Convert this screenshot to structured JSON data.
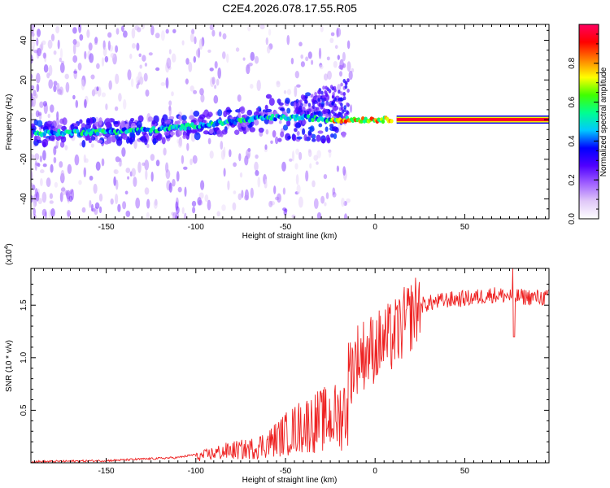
{
  "title": "C2E4.2026.078.17.55.R05",
  "chart_data": [
    {
      "type": "heatmap",
      "xlabel": "Height of straight line (km)",
      "ylabel": "Frequency (Hz)",
      "xlim": [
        -192,
        97
      ],
      "ylim": [
        -50,
        48
      ],
      "xticks": [
        -150,
        -100,
        -50,
        0,
        50
      ],
      "yticks": [
        -40,
        -20,
        0,
        20,
        40
      ],
      "colorbar": {
        "label": "Normalized spectral amplitude",
        "range": [
          0.0,
          1.0
        ],
        "ticks": [
          "0.0",
          "0.2",
          "0.4",
          "0.6",
          "0.8"
        ],
        "colors": [
          "#ffffff",
          "#e0c8f8",
          "#a060ff",
          "#5000ff",
          "#0000ff",
          "#00c8ff",
          "#00ff90",
          "#40ff00",
          "#ffff00",
          "#ff8000",
          "#ff0000",
          "#ff0060"
        ]
      },
      "ridge": [
        {
          "x": -192,
          "y": -7
        },
        {
          "x": -150,
          "y": -6
        },
        {
          "x": -120,
          "y": -5
        },
        {
          "x": -100,
          "y": -3
        },
        {
          "x": -80,
          "y": -1
        },
        {
          "x": -60,
          "y": 1
        },
        {
          "x": -40,
          "y": 1
        },
        {
          "x": -25,
          "y": 0
        },
        {
          "x": -15,
          "y": 0
        },
        {
          "x": 0,
          "y": 0
        },
        {
          "x": 12,
          "y": 0
        },
        {
          "x": 97,
          "y": 0
        }
      ]
    },
    {
      "type": "line",
      "xlabel": "Height of straight line (km)",
      "ylabel": "SNR (10 * v/v)",
      "yscale_label": "(x10",
      "yscale_exp": "4",
      "yscale_close": ")",
      "xlim": [
        -192,
        97
      ],
      "ylim": [
        0,
        1.85
      ],
      "xticks": [
        -150,
        -100,
        -50,
        0,
        50
      ],
      "yticks": [
        "0.5",
        "1.0",
        "1.5"
      ],
      "color": "#ee2222",
      "envelope": [
        {
          "x": -192,
          "y": 0.01
        },
        {
          "x": -150,
          "y": 0.02
        },
        {
          "x": -110,
          "y": 0.05
        },
        {
          "x": -100,
          "y": 0.08
        },
        {
          "x": -90,
          "y": 0.14
        },
        {
          "x": -80,
          "y": 0.18
        },
        {
          "x": -70,
          "y": 0.2
        },
        {
          "x": -60,
          "y": 0.28
        },
        {
          "x": -50,
          "y": 0.42
        },
        {
          "x": -40,
          "y": 0.55
        },
        {
          "x": -30,
          "y": 0.62
        },
        {
          "x": -20,
          "y": 0.68
        },
        {
          "x": -15,
          "y": 0.85
        },
        {
          "x": -10,
          "y": 1.0
        },
        {
          "x": 0,
          "y": 1.1
        },
        {
          "x": 10,
          "y": 1.2
        },
        {
          "x": 15,
          "y": 1.3
        },
        {
          "x": 20,
          "y": 1.4
        },
        {
          "x": 25,
          "y": 1.5
        },
        {
          "x": 40,
          "y": 1.55
        },
        {
          "x": 55,
          "y": 1.57
        },
        {
          "x": 65,
          "y": 1.6
        },
        {
          "x": 80,
          "y": 1.58
        },
        {
          "x": 97,
          "y": 1.57
        }
      ]
    }
  ]
}
